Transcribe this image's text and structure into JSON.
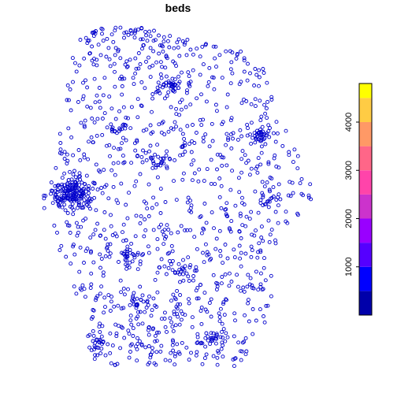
{
  "chart_data": {
    "type": "scatter",
    "title": "beds",
    "marker": "open-circle",
    "point_color": "#0000CC",
    "point_count": 1500,
    "legend": {
      "position": "right",
      "type": "colorbar",
      "range": [
        0,
        4800
      ],
      "ticks": [
        1000,
        2000,
        3000,
        4000
      ],
      "tick_labels": [
        "1000",
        "2000",
        "3000",
        "4000"
      ],
      "bins": [
        {
          "from": 0,
          "to": 500,
          "color": "#0000AA"
        },
        {
          "from": 500,
          "to": 1000,
          "color": "#0000FF"
        },
        {
          "from": 1000,
          "to": 1500,
          "color": "#5500FF"
        },
        {
          "from": 1500,
          "to": 2000,
          "color": "#9900FF"
        },
        {
          "from": 2000,
          "to": 2500,
          "color": "#CC33CC"
        },
        {
          "from": 2500,
          "to": 3000,
          "color": "#FF44AA"
        },
        {
          "from": 3000,
          "to": 3500,
          "color": "#FF6688"
        },
        {
          "from": 3500,
          "to": 4000,
          "color": "#FF9966"
        },
        {
          "from": 4000,
          "to": 4500,
          "color": "#FFCC44"
        },
        {
          "from": 4500,
          "to": 4800,
          "color": "#FFFF00"
        }
      ]
    }
  }
}
